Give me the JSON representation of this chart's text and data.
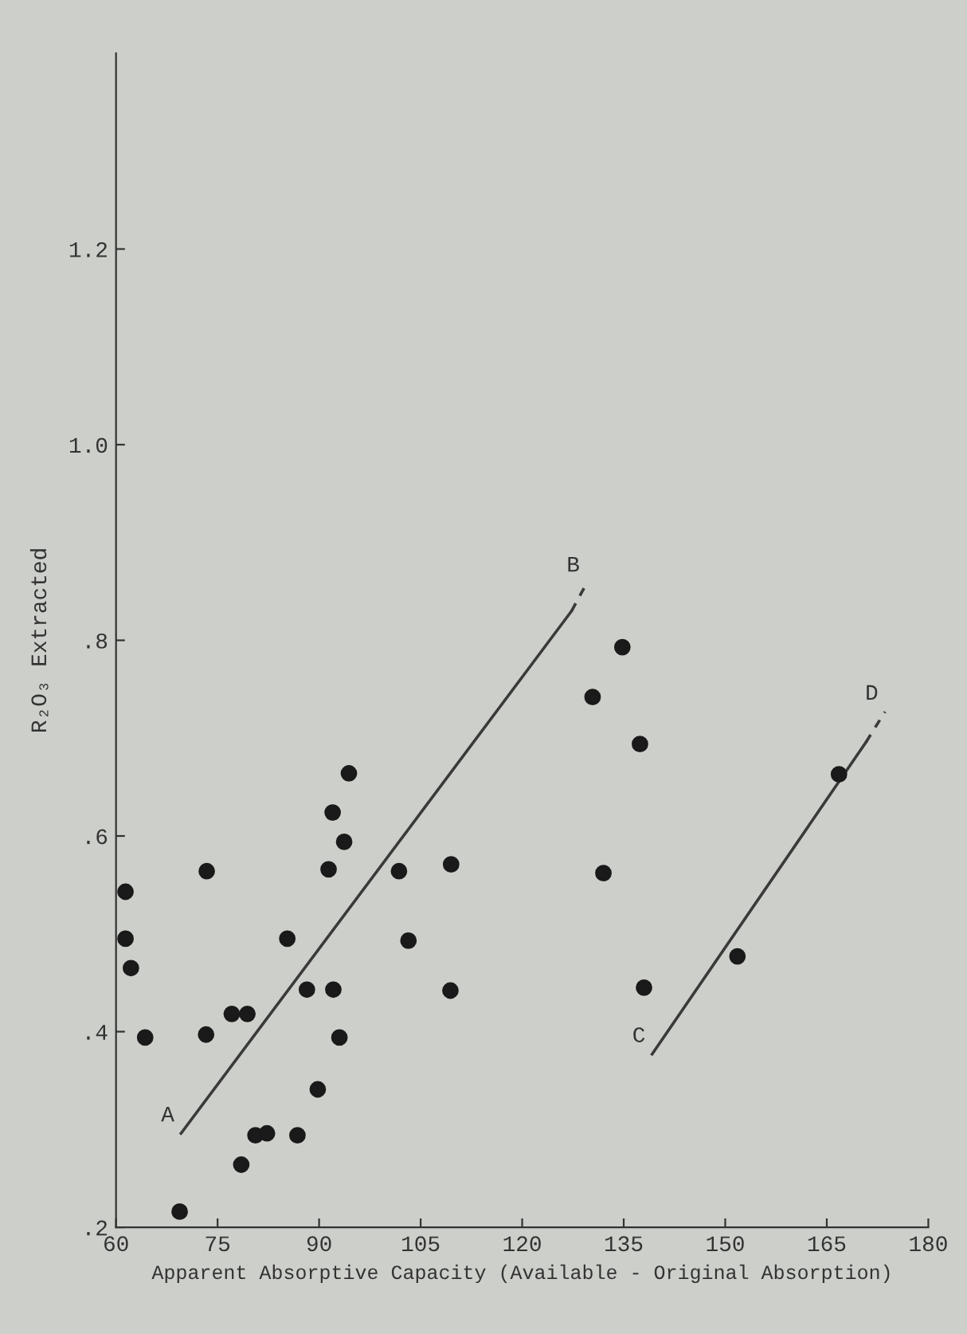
{
  "chart_data": {
    "type": "scatter",
    "xlabel": "Apparent Absorptive Capacity (Available - Original Absorption)",
    "ylabel": "R₂O₃ Extracted",
    "xlim": [
      60,
      180
    ],
    "xticks": [
      60,
      75,
      90,
      105,
      120,
      135,
      150,
      165,
      180
    ],
    "ylim": [
      0.2,
      1.4
    ],
    "yticks": [
      {
        "value": 0.2,
        "label": ".2"
      },
      {
        "value": 0.4,
        "label": ".4"
      },
      {
        "value": 0.6,
        "label": ".6"
      },
      {
        "value": 0.8,
        "label": ".8"
      },
      {
        "value": 1.0,
        "label": "1.0"
      },
      {
        "value": 1.2,
        "label": "1.2"
      }
    ],
    "grid": false,
    "legend": false,
    "series": [
      {
        "color": "#1a1a1a",
        "marker": "circle",
        "x": [
          62.2,
          61.4,
          61.4,
          64.3,
          69.4,
          73.3,
          73.4,
          77.1,
          79.4,
          78.5,
          80.6,
          82.3,
          86.8,
          85.3,
          88.2,
          89.8,
          92.1,
          93.0,
          91.4,
          92.0,
          93.7,
          94.4,
          101.8,
          103.2,
          109.4,
          109.5,
          132.0,
          130.4,
          134.8,
          137.4,
          138.0,
          151.8,
          166.8
        ],
        "values": [
          0.465,
          0.495,
          0.543,
          0.394,
          0.216,
          0.397,
          0.564,
          0.418,
          0.418,
          0.264,
          0.294,
          0.296,
          0.294,
          0.495,
          0.443,
          0.341,
          0.443,
          0.394,
          0.566,
          0.624,
          0.594,
          0.664,
          0.564,
          0.493,
          0.442,
          0.571,
          0.562,
          0.742,
          0.793,
          0.694,
          0.445,
          0.477,
          0.663
        ]
      },
      {
        "type": "line",
        "color": "#3a3a3a",
        "line_style": "solid",
        "x": [
          69.6,
          127.3
        ],
        "values": [
          0.296,
          0.83
        ]
      },
      {
        "type": "line",
        "color": "#3a3a3a",
        "line_style": "dashed",
        "x": [
          127.3,
          129.5
        ],
        "values": [
          0.83,
          0.858
        ]
      },
      {
        "type": "line",
        "color": "#3a3a3a",
        "line_style": "solid",
        "x": [
          139.2,
          170.8
        ],
        "values": [
          0.377,
          0.696
        ]
      },
      {
        "type": "line",
        "color": "#3a3a3a",
        "line_style": "dashed",
        "x": [
          170.8,
          173.6
        ],
        "values": [
          0.696,
          0.727
        ]
      }
    ],
    "annotations": [
      {
        "text": "A",
        "x": 69.6,
        "y": 0.296
      },
      {
        "text": "B",
        "x": 129.5,
        "y": 0.858
      },
      {
        "text": "C",
        "x": 139.2,
        "y": 0.377
      },
      {
        "text": "D",
        "x": 173.6,
        "y": 0.727
      }
    ]
  }
}
